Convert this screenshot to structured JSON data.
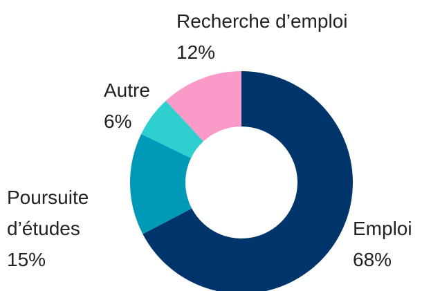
{
  "chart_data": {
    "type": "donut",
    "categories": [
      "Emploi",
      "Poursuite d’études",
      "Autre",
      "Recherche d’emploi"
    ],
    "values": [
      68,
      15,
      6,
      12
    ],
    "value_labels": [
      "68%",
      "15%",
      "6%",
      "12%"
    ],
    "colors": [
      "#00356b",
      "#0099b8",
      "#2ecfcf",
      "#f99ac8"
    ]
  }
}
